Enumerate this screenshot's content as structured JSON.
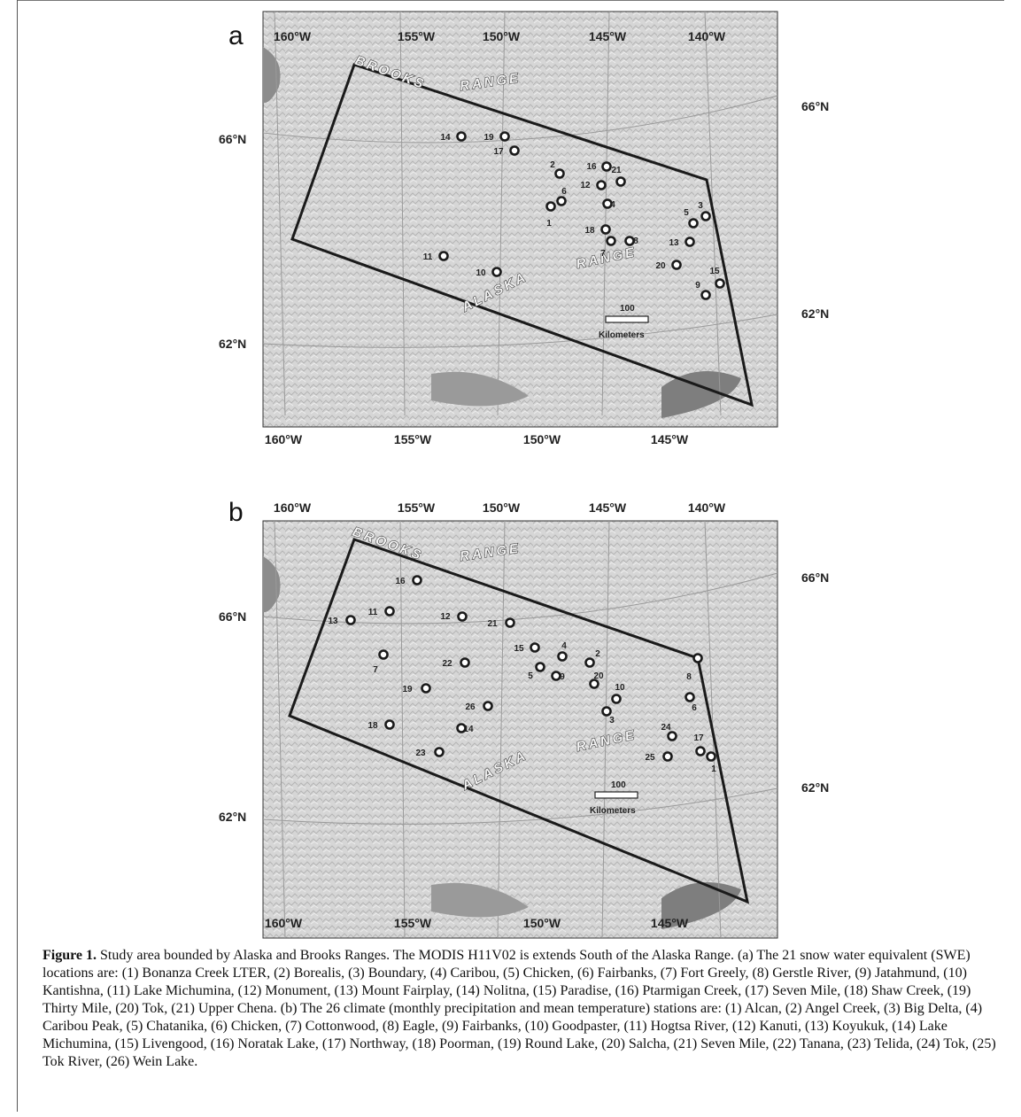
{
  "panels": [
    {
      "letter": "a",
      "lon_top": [
        "160°W",
        "155°W",
        "150°W",
        "145°W",
        "140°W"
      ],
      "lon_bottom": [
        "160°W",
        "155°W",
        "150°W",
        "145°W"
      ],
      "lat_left": [
        "66°N",
        "62°N"
      ],
      "lat_right": [
        "66°N",
        "62°N"
      ],
      "ranges": [
        "BROOKS",
        "RANGE",
        "ALASKA",
        "RANGE"
      ],
      "scale_value": "100",
      "scale_unit": "Kilometers",
      "stations": [
        "1",
        "2",
        "3",
        "4",
        "5",
        "6",
        "7",
        "8",
        "9",
        "10",
        "11",
        "12",
        "13",
        "14",
        "15",
        "16",
        "17",
        "18",
        "19",
        "20",
        "21"
      ]
    },
    {
      "letter": "b",
      "lon_top": [
        "160°W",
        "155°W",
        "150°W",
        "145°W",
        "140°W"
      ],
      "lon_bottom": [
        "160°W",
        "155°W",
        "150°W",
        "145°W"
      ],
      "lat_left": [
        "66°N",
        "62°N"
      ],
      "lat_right": [
        "66°N",
        "62°N"
      ],
      "ranges": [
        "BROOKS",
        "RANGE",
        "ALASKA",
        "RANGE"
      ],
      "scale_value": "100",
      "scale_unit": "Kilometers",
      "stations": [
        "1",
        "2",
        "3",
        "4",
        "5",
        "6",
        "7",
        "8",
        "9",
        "10",
        "11",
        "12",
        "13",
        "14",
        "15",
        "16",
        "17",
        "18",
        "19",
        "20",
        "21",
        "22",
        "23",
        "24",
        "25",
        "26"
      ]
    }
  ],
  "caption": {
    "label": "Figure 1.",
    "text": " Study area bounded by Alaska and Brooks Ranges. The MODIS H11V02 is extends South of the Alaska Range. (a) The 21 snow water equivalent (SWE) locations are: (1) Bonanza Creek LTER, (2) Borealis, (3) Boundary, (4) Caribou, (5) Chicken, (6) Fairbanks, (7) Fort Greely, (8) Gerstle River, (9) Jatahmund, (10) Kantishna, (11) Lake Michumina, (12) Monument, (13) Mount Fairplay, (14) Nolitna, (15) Paradise, (16) Ptarmigan Creek, (17) Seven Mile, (18) Shaw Creek, (19) Thirty Mile, (20) Tok, (21) Upper Chena. (b) The 26 climate (monthly precipitation and mean temperature) stations are: (1) Alcan, (2) Angel Creek, (3) Big Delta, (4) Caribou Peak, (5) Chatanika, (6) Chicken, (7) Cottonwood, (8) Eagle, (9) Fairbanks, (10) Goodpaster, (11) Hogtsa River, (12) Kanuti, (13) Koyukuk, (14) Lake Michumina, (15) Livengood, (16) Noratak Lake, (17) Northway, (18) Poorman, (19) Round Lake, (20) Salcha, (21) Seven Mile, (22) Tanana, (23) Telida, (24) Tok, (25) Tok River, (26) Wein Lake."
  }
}
